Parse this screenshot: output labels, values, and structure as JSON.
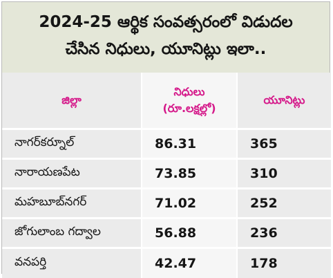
{
  "title": {
    "line1": "2024-25 ఆర్థిక సంవత్సరంలో విడుదల",
    "line2": "చేసిన నిధులు, యూనిట్లు ఇలా.."
  },
  "table": {
    "headers": {
      "district": "జిల్లా",
      "funds": "నిధులు",
      "funds_unit": "(రూ.లక్షల్లో)",
      "units": "యూనిట్లు"
    },
    "rows": [
      {
        "district": "నాగర్‌కర్నూల్",
        "funds": "86.31",
        "units": "365"
      },
      {
        "district": "నారాయణపేట",
        "funds": "73.85",
        "units": "310"
      },
      {
        "district": "మహబూబ్‌నగర్",
        "funds": "71.02",
        "units": "252"
      },
      {
        "district": "జోగులాంబ గద్వాల",
        "funds": "56.88",
        "units": "236"
      },
      {
        "district": "వనపర్తి",
        "funds": "42.47",
        "units": "178"
      }
    ]
  }
}
